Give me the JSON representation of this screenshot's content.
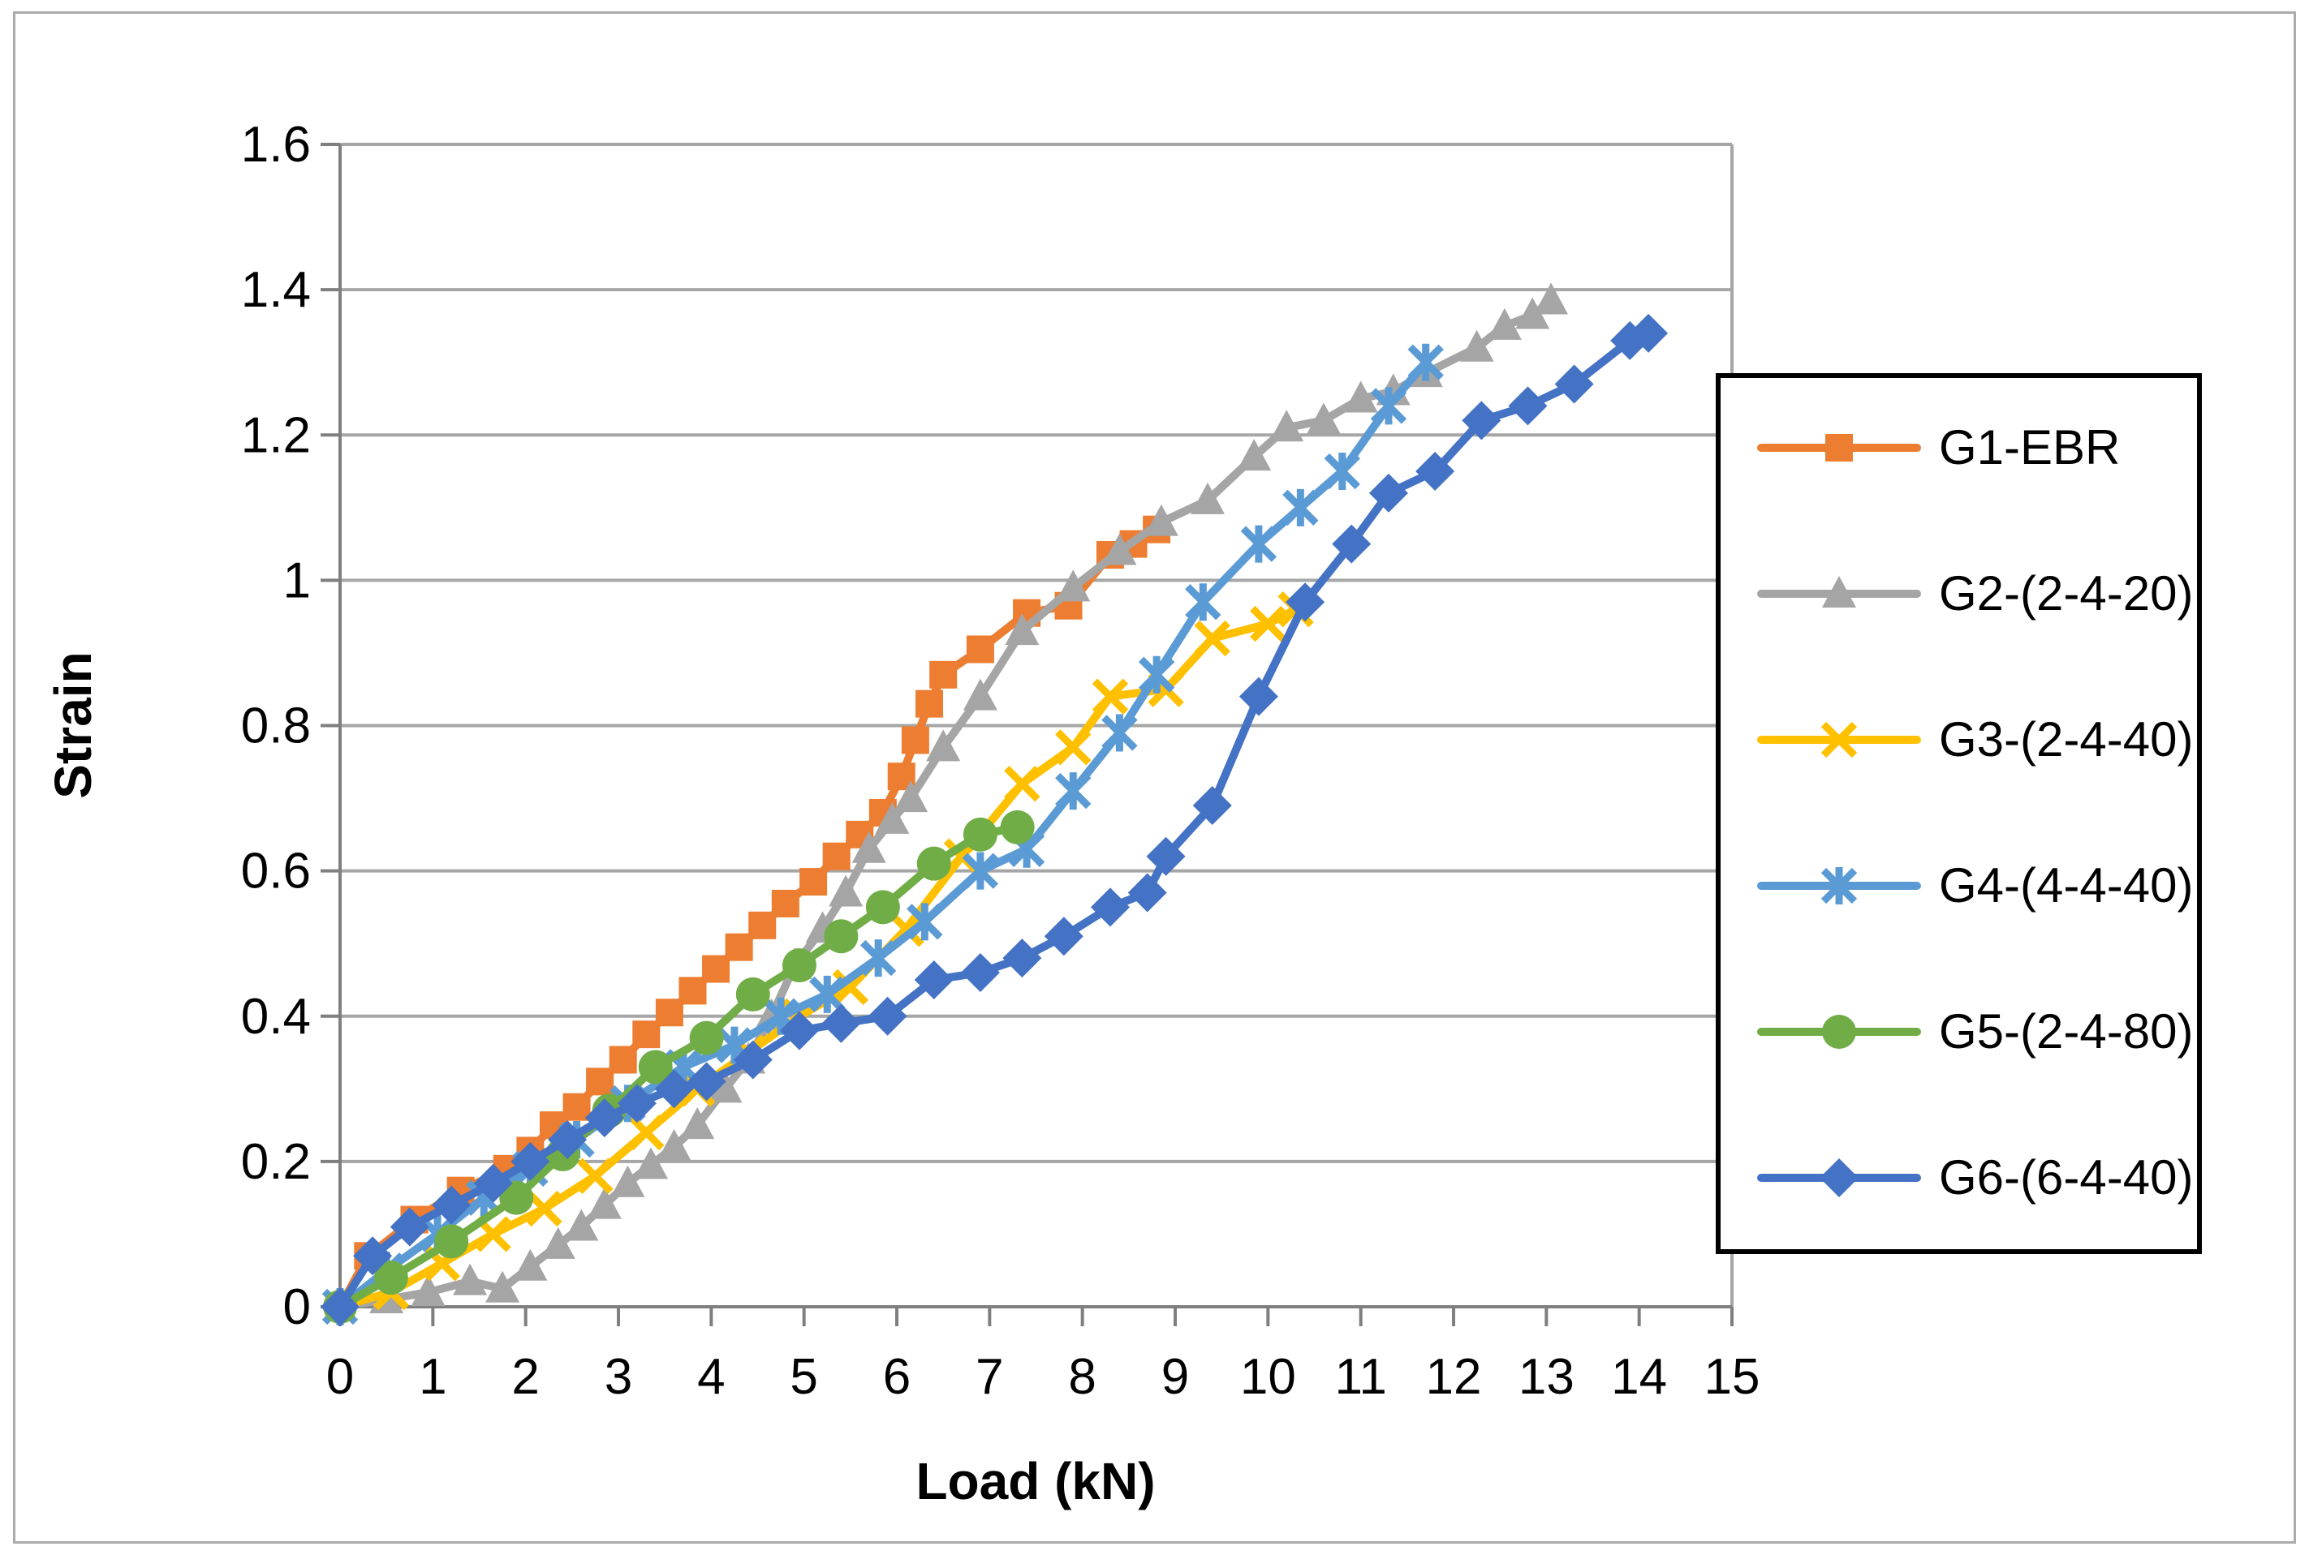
{
  "chart_data": {
    "type": "line",
    "title": "",
    "xlabel": "Load (kN)",
    "ylabel": "Strain",
    "xlim": [
      0,
      15
    ],
    "ylim": [
      0,
      1.6
    ],
    "x_ticks": [
      0,
      1,
      2,
      3,
      4,
      5,
      6,
      7,
      8,
      9,
      10,
      11,
      12,
      13,
      14,
      15
    ],
    "x_tick_labels": [
      "0",
      "1",
      "2",
      "3",
      "4",
      "5",
      "6",
      "7",
      "8",
      "9",
      "10",
      "11",
      "12",
      "13",
      "14",
      "15"
    ],
    "y_ticks": [
      0,
      0.2,
      0.4,
      0.6,
      0.8,
      1.0,
      1.2,
      1.4,
      1.6
    ],
    "y_tick_labels": [
      "0",
      "0.2",
      "0.4",
      "0.6",
      "0.8",
      "1",
      "1.2",
      "1.4",
      "1.6"
    ],
    "grid": "horizontal",
    "legend_position": "right",
    "styles": {
      "gridline_color": "#a6a6a6",
      "axis_color": "#7f7f7f",
      "text_color": "#000000",
      "legend_border_color": "#000000",
      "background": "#ffffff"
    },
    "series": [
      {
        "name": "G1-EBR",
        "color": "#ED7D31",
        "marker": "square",
        "points": [
          [
            0,
            0
          ],
          [
            0.3,
            0.07
          ],
          [
            0.8,
            0.12
          ],
          [
            1.3,
            0.16
          ],
          [
            1.8,
            0.19
          ],
          [
            2.05,
            0.215
          ],
          [
            2.3,
            0.25
          ],
          [
            2.55,
            0.275
          ],
          [
            2.8,
            0.31
          ],
          [
            3.05,
            0.34
          ],
          [
            3.3,
            0.375
          ],
          [
            3.55,
            0.405
          ],
          [
            3.8,
            0.435
          ],
          [
            4.05,
            0.465
          ],
          [
            4.3,
            0.495
          ],
          [
            4.55,
            0.525
          ],
          [
            4.8,
            0.555
          ],
          [
            5.1,
            0.585
          ],
          [
            5.35,
            0.62
          ],
          [
            5.6,
            0.65
          ],
          [
            5.85,
            0.68
          ],
          [
            6.05,
            0.73
          ],
          [
            6.2,
            0.78
          ],
          [
            6.35,
            0.83
          ],
          [
            6.5,
            0.87
          ],
          [
            6.9,
            0.905
          ],
          [
            7.4,
            0.955
          ],
          [
            7.85,
            0.965
          ],
          [
            8.3,
            1.035
          ],
          [
            8.55,
            1.05
          ],
          [
            8.8,
            1.07
          ]
        ]
      },
      {
        "name": "G2-(2-4-20)",
        "color": "#A5A5A5",
        "marker": "triangle",
        "points": [
          [
            0,
            0
          ],
          [
            0.5,
            0.01
          ],
          [
            0.95,
            0.02
          ],
          [
            1.4,
            0.035
          ],
          [
            1.75,
            0.025
          ],
          [
            2.05,
            0.055
          ],
          [
            2.35,
            0.085
          ],
          [
            2.6,
            0.11
          ],
          [
            2.85,
            0.14
          ],
          [
            3.1,
            0.17
          ],
          [
            3.35,
            0.195
          ],
          [
            3.6,
            0.22
          ],
          [
            3.85,
            0.25
          ],
          [
            4.15,
            0.3
          ],
          [
            4.4,
            0.34
          ],
          [
            4.65,
            0.4
          ],
          [
            4.9,
            0.47
          ],
          [
            5.2,
            0.52
          ],
          [
            5.45,
            0.57
          ],
          [
            5.7,
            0.63
          ],
          [
            5.95,
            0.67
          ],
          [
            6.15,
            0.7
          ],
          [
            6.5,
            0.77
          ],
          [
            6.9,
            0.84
          ],
          [
            7.35,
            0.93
          ],
          [
            7.9,
            0.99
          ],
          [
            8.4,
            1.04
          ],
          [
            8.85,
            1.08
          ],
          [
            9.35,
            1.11
          ],
          [
            9.85,
            1.17
          ],
          [
            10.2,
            1.21
          ],
          [
            10.6,
            1.22
          ],
          [
            11.0,
            1.25
          ],
          [
            11.35,
            1.26
          ],
          [
            11.7,
            1.285
          ],
          [
            12.25,
            1.32
          ],
          [
            12.55,
            1.35
          ],
          [
            12.85,
            1.365
          ],
          [
            13.05,
            1.385
          ]
        ]
      },
      {
        "name": "G3-(2-4-40)",
        "color": "#FFC000",
        "marker": "x",
        "points": [
          [
            0,
            0
          ],
          [
            0.55,
            0.02
          ],
          [
            1.1,
            0.06
          ],
          [
            1.65,
            0.1
          ],
          [
            2.2,
            0.135
          ],
          [
            2.75,
            0.18
          ],
          [
            3.3,
            0.24
          ],
          [
            3.85,
            0.3
          ],
          [
            4.4,
            0.35
          ],
          [
            4.95,
            0.4
          ],
          [
            5.5,
            0.44
          ],
          [
            6.1,
            0.52
          ],
          [
            6.7,
            0.62
          ],
          [
            7.35,
            0.72
          ],
          [
            7.9,
            0.77
          ],
          [
            8.3,
            0.84
          ],
          [
            8.9,
            0.85
          ],
          [
            9.4,
            0.92
          ],
          [
            10.0,
            0.94
          ],
          [
            10.3,
            0.96
          ]
        ]
      },
      {
        "name": "G4-(4-4-40)",
        "color": "#5B9BD5",
        "marker": "asterisk",
        "points": [
          [
            0,
            0
          ],
          [
            0.5,
            0.05
          ],
          [
            1.05,
            0.1
          ],
          [
            1.55,
            0.15
          ],
          [
            2.05,
            0.19
          ],
          [
            2.55,
            0.23
          ],
          [
            3.1,
            0.28
          ],
          [
            3.7,
            0.33
          ],
          [
            4.25,
            0.36
          ],
          [
            4.75,
            0.4
          ],
          [
            5.25,
            0.43
          ],
          [
            5.8,
            0.48
          ],
          [
            6.3,
            0.53
          ],
          [
            6.9,
            0.6
          ],
          [
            7.4,
            0.63
          ],
          [
            7.9,
            0.71
          ],
          [
            8.4,
            0.79
          ],
          [
            8.8,
            0.87
          ],
          [
            9.3,
            0.97
          ],
          [
            9.9,
            1.05
          ],
          [
            10.35,
            1.1
          ],
          [
            10.8,
            1.15
          ],
          [
            11.3,
            1.24
          ],
          [
            11.7,
            1.3
          ]
        ]
      },
      {
        "name": "G5-(2-4-80)",
        "color": "#70AD47",
        "marker": "circle",
        "points": [
          [
            0,
            0
          ],
          [
            0.55,
            0.04
          ],
          [
            1.2,
            0.09
          ],
          [
            1.9,
            0.15
          ],
          [
            2.4,
            0.21
          ],
          [
            2.9,
            0.27
          ],
          [
            3.4,
            0.33
          ],
          [
            3.95,
            0.37
          ],
          [
            4.45,
            0.43
          ],
          [
            4.95,
            0.47
          ],
          [
            5.4,
            0.51
          ],
          [
            5.85,
            0.55
          ],
          [
            6.4,
            0.61
          ],
          [
            6.9,
            0.65
          ],
          [
            7.3,
            0.66
          ]
        ]
      },
      {
        "name": "G6-(6-4-40)",
        "color": "#4472C4",
        "marker": "diamond",
        "points": [
          [
            0,
            0
          ],
          [
            0.35,
            0.07
          ],
          [
            0.75,
            0.11
          ],
          [
            1.2,
            0.14
          ],
          [
            1.65,
            0.17
          ],
          [
            2.05,
            0.2
          ],
          [
            2.45,
            0.23
          ],
          [
            2.85,
            0.26
          ],
          [
            3.2,
            0.28
          ],
          [
            3.6,
            0.3
          ],
          [
            3.95,
            0.31
          ],
          [
            4.45,
            0.34
          ],
          [
            4.95,
            0.38
          ],
          [
            5.4,
            0.39
          ],
          [
            5.9,
            0.4
          ],
          [
            6.4,
            0.45
          ],
          [
            6.9,
            0.46
          ],
          [
            7.35,
            0.48
          ],
          [
            7.8,
            0.51
          ],
          [
            8.3,
            0.55
          ],
          [
            8.7,
            0.57
          ],
          [
            8.9,
            0.62
          ],
          [
            9.4,
            0.69
          ],
          [
            9.9,
            0.84
          ],
          [
            10.4,
            0.97
          ],
          [
            10.9,
            1.05
          ],
          [
            11.3,
            1.12
          ],
          [
            11.8,
            1.15
          ],
          [
            12.3,
            1.22
          ],
          [
            12.8,
            1.24
          ],
          [
            13.3,
            1.27
          ],
          [
            13.9,
            1.33
          ],
          [
            14.1,
            1.34
          ]
        ]
      }
    ]
  }
}
